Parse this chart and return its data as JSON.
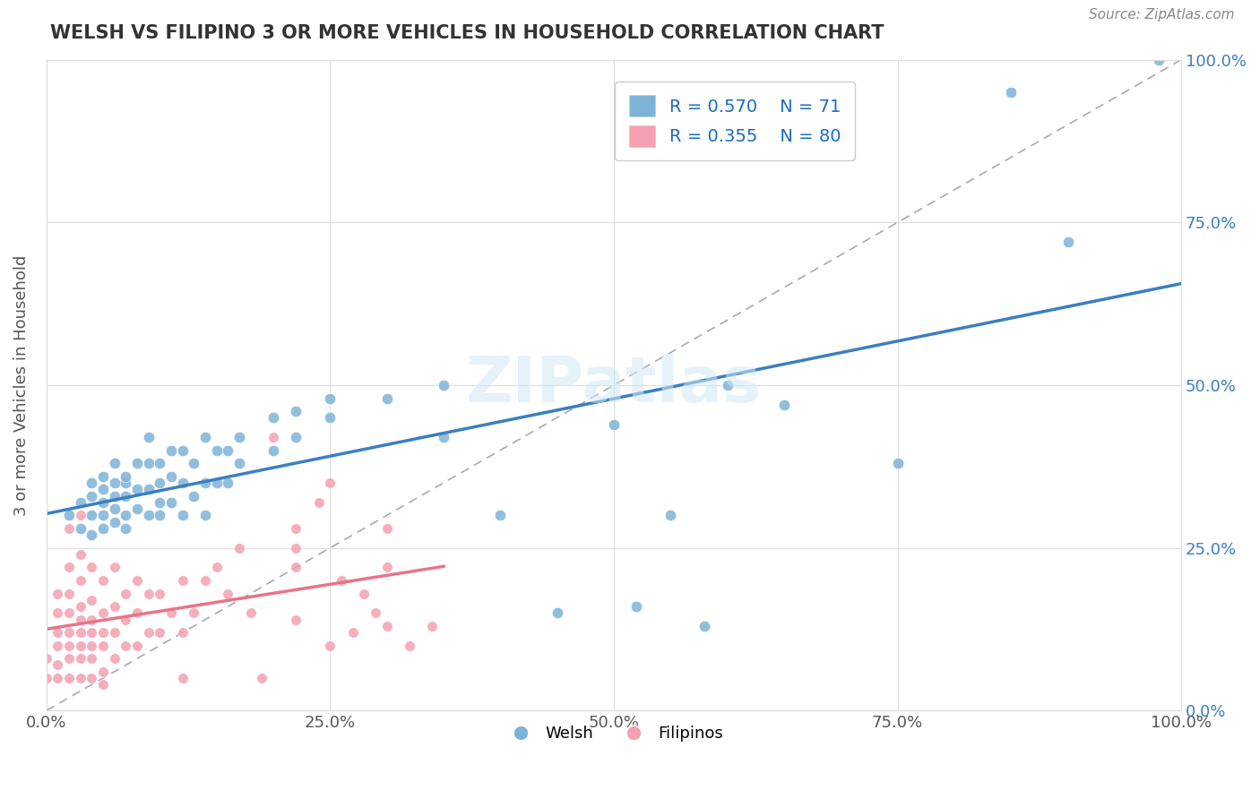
{
  "title": "WELSH VS FILIPINO 3 OR MORE VEHICLES IN HOUSEHOLD CORRELATION CHART",
  "source_text": "Source: ZipAtlas.com",
  "xlabel": "",
  "ylabel": "3 or more Vehicles in Household",
  "xmin": 0.0,
  "xmax": 1.0,
  "ymin": 0.0,
  "ymax": 1.0,
  "welsh_color": "#7eb3d8",
  "filipino_color": "#f4a0b0",
  "welsh_R": 0.57,
  "welsh_N": 71,
  "filipino_R": 0.355,
  "filipino_N": 80,
  "watermark": "ZIPatlas",
  "background_color": "#ffffff",
  "title_color": "#333333",
  "legend_R_color": "#1a6bbf",
  "welsh_trend_color": "#3a7fc1",
  "filipino_trend_color": "#e8748a",
  "ref_line_color": "#aaaaaa",
  "right_tick_color": "#3a7fc1",
  "welsh_scatter": [
    [
      0.02,
      0.3
    ],
    [
      0.03,
      0.28
    ],
    [
      0.03,
      0.32
    ],
    [
      0.04,
      0.27
    ],
    [
      0.04,
      0.3
    ],
    [
      0.04,
      0.33
    ],
    [
      0.04,
      0.35
    ],
    [
      0.05,
      0.28
    ],
    [
      0.05,
      0.3
    ],
    [
      0.05,
      0.32
    ],
    [
      0.05,
      0.34
    ],
    [
      0.05,
      0.36
    ],
    [
      0.06,
      0.29
    ],
    [
      0.06,
      0.31
    ],
    [
      0.06,
      0.33
    ],
    [
      0.06,
      0.35
    ],
    [
      0.06,
      0.38
    ],
    [
      0.07,
      0.28
    ],
    [
      0.07,
      0.3
    ],
    [
      0.07,
      0.33
    ],
    [
      0.07,
      0.35
    ],
    [
      0.07,
      0.36
    ],
    [
      0.08,
      0.31
    ],
    [
      0.08,
      0.34
    ],
    [
      0.08,
      0.38
    ],
    [
      0.09,
      0.3
    ],
    [
      0.09,
      0.34
    ],
    [
      0.09,
      0.38
    ],
    [
      0.09,
      0.42
    ],
    [
      0.1,
      0.3
    ],
    [
      0.1,
      0.32
    ],
    [
      0.1,
      0.35
    ],
    [
      0.1,
      0.38
    ],
    [
      0.11,
      0.32
    ],
    [
      0.11,
      0.36
    ],
    [
      0.11,
      0.4
    ],
    [
      0.12,
      0.3
    ],
    [
      0.12,
      0.35
    ],
    [
      0.12,
      0.4
    ],
    [
      0.13,
      0.33
    ],
    [
      0.13,
      0.38
    ],
    [
      0.14,
      0.3
    ],
    [
      0.14,
      0.35
    ],
    [
      0.14,
      0.42
    ],
    [
      0.15,
      0.35
    ],
    [
      0.15,
      0.4
    ],
    [
      0.16,
      0.35
    ],
    [
      0.16,
      0.4
    ],
    [
      0.17,
      0.38
    ],
    [
      0.17,
      0.42
    ],
    [
      0.2,
      0.4
    ],
    [
      0.2,
      0.45
    ],
    [
      0.22,
      0.42
    ],
    [
      0.22,
      0.46
    ],
    [
      0.25,
      0.45
    ],
    [
      0.25,
      0.48
    ],
    [
      0.3,
      0.48
    ],
    [
      0.35,
      0.42
    ],
    [
      0.35,
      0.5
    ],
    [
      0.4,
      0.3
    ],
    [
      0.45,
      0.15
    ],
    [
      0.5,
      0.44
    ],
    [
      0.52,
      0.16
    ],
    [
      0.55,
      0.3
    ],
    [
      0.58,
      0.13
    ],
    [
      0.6,
      0.5
    ],
    [
      0.65,
      0.47
    ],
    [
      0.75,
      0.38
    ],
    [
      0.85,
      0.95
    ],
    [
      0.9,
      0.72
    ],
    [
      0.98,
      1.0
    ]
  ],
  "filipino_scatter": [
    [
      0.0,
      0.05
    ],
    [
      0.0,
      0.08
    ],
    [
      0.01,
      0.05
    ],
    [
      0.01,
      0.07
    ],
    [
      0.01,
      0.1
    ],
    [
      0.01,
      0.12
    ],
    [
      0.01,
      0.15
    ],
    [
      0.01,
      0.18
    ],
    [
      0.02,
      0.05
    ],
    [
      0.02,
      0.08
    ],
    [
      0.02,
      0.1
    ],
    [
      0.02,
      0.12
    ],
    [
      0.02,
      0.15
    ],
    [
      0.02,
      0.18
    ],
    [
      0.02,
      0.22
    ],
    [
      0.02,
      0.28
    ],
    [
      0.03,
      0.05
    ],
    [
      0.03,
      0.08
    ],
    [
      0.03,
      0.1
    ],
    [
      0.03,
      0.12
    ],
    [
      0.03,
      0.14
    ],
    [
      0.03,
      0.16
    ],
    [
      0.03,
      0.2
    ],
    [
      0.03,
      0.24
    ],
    [
      0.03,
      0.3
    ],
    [
      0.04,
      0.05
    ],
    [
      0.04,
      0.08
    ],
    [
      0.04,
      0.1
    ],
    [
      0.04,
      0.12
    ],
    [
      0.04,
      0.14
    ],
    [
      0.04,
      0.17
    ],
    [
      0.04,
      0.22
    ],
    [
      0.05,
      0.06
    ],
    [
      0.05,
      0.1
    ],
    [
      0.05,
      0.12
    ],
    [
      0.05,
      0.15
    ],
    [
      0.05,
      0.2
    ],
    [
      0.06,
      0.08
    ],
    [
      0.06,
      0.12
    ],
    [
      0.06,
      0.16
    ],
    [
      0.06,
      0.22
    ],
    [
      0.07,
      0.1
    ],
    [
      0.07,
      0.14
    ],
    [
      0.07,
      0.18
    ],
    [
      0.08,
      0.1
    ],
    [
      0.08,
      0.15
    ],
    [
      0.08,
      0.2
    ],
    [
      0.09,
      0.12
    ],
    [
      0.09,
      0.18
    ],
    [
      0.1,
      0.12
    ],
    [
      0.1,
      0.18
    ],
    [
      0.11,
      0.15
    ],
    [
      0.12,
      0.12
    ],
    [
      0.12,
      0.2
    ],
    [
      0.13,
      0.15
    ],
    [
      0.14,
      0.2
    ],
    [
      0.15,
      0.22
    ],
    [
      0.16,
      0.18
    ],
    [
      0.17,
      0.25
    ],
    [
      0.18,
      0.15
    ],
    [
      0.19,
      0.05
    ],
    [
      0.2,
      0.42
    ],
    [
      0.22,
      0.14
    ],
    [
      0.22,
      0.22
    ],
    [
      0.22,
      0.25
    ],
    [
      0.22,
      0.28
    ],
    [
      0.24,
      0.32
    ],
    [
      0.25,
      0.1
    ],
    [
      0.25,
      0.35
    ],
    [
      0.26,
      0.2
    ],
    [
      0.27,
      0.12
    ],
    [
      0.28,
      0.18
    ],
    [
      0.29,
      0.15
    ],
    [
      0.3,
      0.22
    ],
    [
      0.3,
      0.28
    ],
    [
      0.3,
      0.13
    ],
    [
      0.32,
      0.1
    ],
    [
      0.34,
      0.13
    ],
    [
      0.12,
      0.05
    ],
    [
      0.05,
      0.04
    ]
  ]
}
